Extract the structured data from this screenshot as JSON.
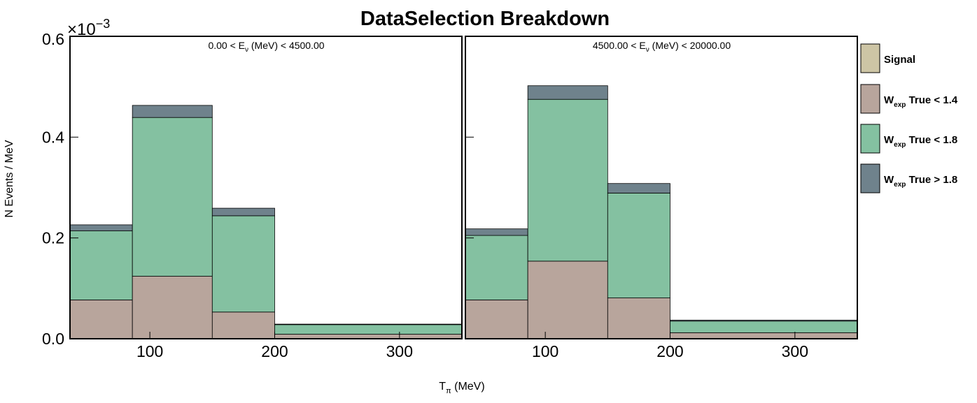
{
  "chart_data": {
    "type": "bar",
    "stacked": true,
    "title": "DataSelection Breakdown",
    "xlabel": "T",
    "xlabel_sub": "π",
    "xlabel_unit": "(MeV)",
    "ylabel": "N Events / MeV",
    "y_multiplier": "×10",
    "y_multiplier_exp": "−3",
    "ylim": [
      0,
      0.6
    ],
    "xlim": [
      36,
      350
    ],
    "yticks": [
      "0.0",
      "0.2",
      "0.4",
      "0.6"
    ],
    "xticks": [
      "100",
      "200",
      "300"
    ],
    "bin_edges": [
      36,
      86,
      150,
      200,
      350
    ],
    "legend": {
      "position": "right",
      "entries": [
        {
          "main": "Signal",
          "sub": "",
          "rest": "",
          "color": "#cdc5a5"
        },
        {
          "main": "W",
          "sub": "exp",
          "rest": " True < 1.4",
          "color": "#b8a59c"
        },
        {
          "main": "W",
          "sub": "exp",
          "rest": " True < 1.8",
          "color": "#84c1a1"
        },
        {
          "main": "W",
          "sub": "exp",
          "rest": " True > 1.8",
          "color": "#6f828c"
        }
      ]
    },
    "panels": [
      {
        "label": "0.00 < E",
        "label_sub": "ν",
        "label_rest": " (MeV) < 4500.00",
        "series": [
          {
            "name": "Signal",
            "values": [
              0.0,
              0.0,
              0.0,
              0.0
            ]
          },
          {
            "name": "W_exp True < 1.4",
            "values": [
              0.077,
              0.124,
              0.053,
              0.009
            ]
          },
          {
            "name": "W_exp True < 1.8",
            "values": [
              0.137,
              0.315,
              0.191,
              0.019
            ]
          },
          {
            "name": "W_exp True > 1.8",
            "values": [
              0.012,
              0.024,
              0.015,
              0.001
            ]
          }
        ]
      },
      {
        "label": "4500.00 < E",
        "label_sub": "ν",
        "label_rest": " (MeV) < 20000.00",
        "series": [
          {
            "name": "Signal",
            "values": [
              0.0,
              0.0,
              0.0,
              0.0
            ]
          },
          {
            "name": "W_exp True < 1.4",
            "values": [
              0.077,
              0.154,
              0.081,
              0.012
            ]
          },
          {
            "name": "W_exp True < 1.8",
            "values": [
              0.128,
              0.321,
              0.208,
              0.023
            ]
          },
          {
            "name": "W_exp True > 1.8",
            "values": [
              0.013,
              0.027,
              0.019,
              0.002
            ]
          }
        ]
      }
    ]
  }
}
